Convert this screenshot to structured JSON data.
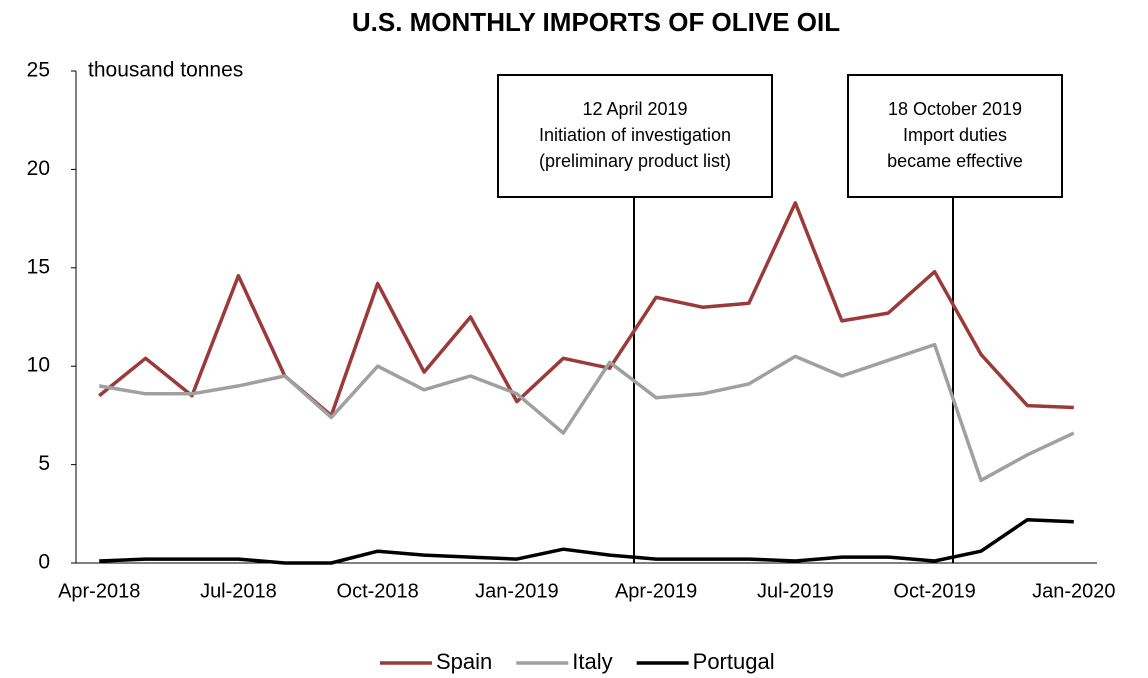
{
  "chart_data": {
    "type": "line",
    "title": "U.S. MONTHLY IMPORTS OF OLIVE OIL",
    "y_label": "thousand tonnes",
    "categories": [
      "Apr-2018",
      null,
      null,
      "Jul-2018",
      null,
      null,
      "Oct-2018",
      null,
      null,
      "Jan-2019",
      null,
      null,
      "Apr-2019",
      null,
      null,
      "Jul-2019",
      null,
      null,
      "Oct-2019",
      null,
      null,
      "Jan-2020"
    ],
    "series": [
      {
        "name": "Spain",
        "color": "#9b3a38",
        "values": [
          8.5,
          10.4,
          8.5,
          14.6,
          9.5,
          7.5,
          14.2,
          9.7,
          12.5,
          8.2,
          10.4,
          9.9,
          13.5,
          13.0,
          13.2,
          18.3,
          12.3,
          12.7,
          14.8,
          10.6,
          8.0,
          7.9
        ]
      },
      {
        "name": "Italy",
        "color": "#a0a0a0",
        "values": [
          9.0,
          8.6,
          8.6,
          9.0,
          9.5,
          7.4,
          10.0,
          8.8,
          9.5,
          8.6,
          6.6,
          10.2,
          8.4,
          8.6,
          9.1,
          10.5,
          9.5,
          10.3,
          11.1,
          4.2,
          5.5,
          6.6
        ]
      },
      {
        "name": "Portugal",
        "color": "#000000",
        "values": [
          0.1,
          0.2,
          0.2,
          0.2,
          0.0,
          0.0,
          0.6,
          0.4,
          0.3,
          0.2,
          0.7,
          0.4,
          0.2,
          0.2,
          0.2,
          0.1,
          0.3,
          0.3,
          0.1,
          0.6,
          2.2,
          2.1
        ]
      }
    ],
    "ylim": [
      0,
      25
    ],
    "yticks": [
      0,
      5,
      10,
      15,
      20,
      25
    ],
    "annotations": [
      {
        "lines": [
          "12 April 2019",
          "Initiation of investigation",
          "(preliminary product list)"
        ]
      },
      {
        "lines": [
          "18 October 2019",
          "Import duties",
          "became effective"
        ]
      }
    ],
    "legend": "bottom"
  }
}
